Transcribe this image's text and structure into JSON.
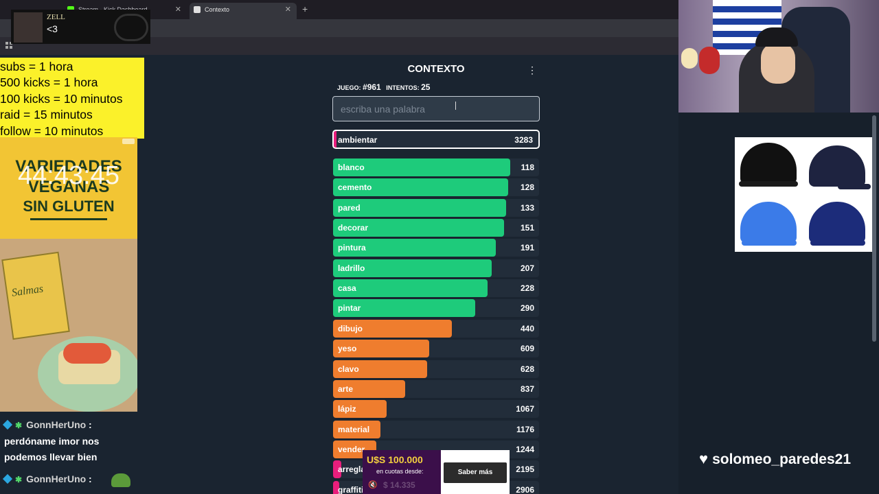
{
  "browser": {
    "tabs": [
      {
        "label": "Stream - Kick Dashboard",
        "fav_color": "#53fc18"
      },
      {
        "label": "Contexto",
        "fav_color": "#e0e0e0"
      }
    ],
    "new_tab": "+"
  },
  "overlay": {
    "avatar_name": "ZELL",
    "avatar_message": "<3",
    "rules": [
      "subs = 1 hora",
      "500 kicks = 1 hora",
      "100 kicks = 10 minutos",
      "raid = 15 minutos",
      "follow = 10 minutos"
    ],
    "timer": "44:43:45",
    "follower": "solomeo_paredes21"
  },
  "ad": {
    "title_line1": "VARIEDADES",
    "title_line2": "VEGANAS",
    "title_line3": "SIN GLUTEN",
    "product": "Salmas"
  },
  "chat": [
    {
      "user": "GonnHerUno",
      "text": "perdóname imor nos podemos llevar bien"
    },
    {
      "user": "GonnHerUno",
      "text": ""
    }
  ],
  "game": {
    "title": "CONTEXTO",
    "game_label": "JUEGO:",
    "game_number": "#961",
    "attempts_label": "INTENTOS:",
    "attempts": "25",
    "placeholder": "escriba una palabra",
    "current": {
      "word": "ambientar",
      "distance": 3283,
      "color": "#e91e7c"
    },
    "guesses": [
      {
        "word": "blanco",
        "distance": 118,
        "fill": 0.86,
        "color": "#1ecb7b"
      },
      {
        "word": "cemento",
        "distance": 128,
        "fill": 0.85,
        "color": "#1ecb7b"
      },
      {
        "word": "pared",
        "distance": 133,
        "fill": 0.84,
        "color": "#1ecb7b"
      },
      {
        "word": "decorar",
        "distance": 151,
        "fill": 0.83,
        "color": "#1ecb7b"
      },
      {
        "word": "pintura",
        "distance": 191,
        "fill": 0.79,
        "color": "#1ecb7b"
      },
      {
        "word": "ladrillo",
        "distance": 207,
        "fill": 0.77,
        "color": "#1ecb7b"
      },
      {
        "word": "casa",
        "distance": 228,
        "fill": 0.75,
        "color": "#1ecb7b"
      },
      {
        "word": "pintar",
        "distance": 290,
        "fill": 0.69,
        "color": "#1ecb7b"
      },
      {
        "word": "dibujo",
        "distance": 440,
        "fill": 0.575,
        "color": "#ef7d2e"
      },
      {
        "word": "yeso",
        "distance": 609,
        "fill": 0.465,
        "color": "#ef7d2e"
      },
      {
        "word": "clavo",
        "distance": 628,
        "fill": 0.455,
        "color": "#ef7d2e"
      },
      {
        "word": "arte",
        "distance": 837,
        "fill": 0.35,
        "color": "#ef7d2e"
      },
      {
        "word": "lápiz",
        "distance": 1067,
        "fill": 0.26,
        "color": "#ef7d2e"
      },
      {
        "word": "material",
        "distance": 1176,
        "fill": 0.23,
        "color": "#ef7d2e"
      },
      {
        "word": "vender",
        "distance": 1244,
        "fill": 0.21,
        "color": "#ef7d2e"
      },
      {
        "word": "arreglar",
        "distance": 2195,
        "fill": 0.04,
        "color": "#e91e7c"
      },
      {
        "word": "graffiti",
        "distance": 2906,
        "fill": 0.03,
        "color": "#e91e7c"
      }
    ]
  },
  "bottom_ad": {
    "price": "U$S 100.000",
    "desc": "en cuotas desde:",
    "price2": "$ 14.335",
    "button": "Saber más"
  }
}
